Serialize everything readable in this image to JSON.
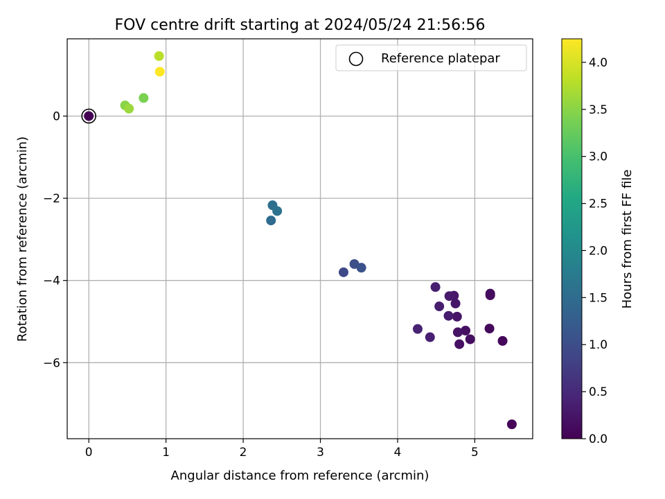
{
  "chart_data": {
    "type": "scatter",
    "title": "FOV centre drift starting at 2024/05/24 21:56:56",
    "xlabel": "Angular distance from reference (arcmin)",
    "ylabel": "Rotation from reference (arcmin)",
    "xlim": [
      -0.28,
      5.75
    ],
    "ylim": [
      -7.85,
      1.88
    ],
    "xticks": [
      0,
      1,
      2,
      3,
      4,
      5
    ],
    "yticks": [
      0,
      -2,
      -4,
      -6
    ],
    "xtick_labels": [
      "0",
      "1",
      "2",
      "3",
      "4",
      "5"
    ],
    "ytick_labels": [
      "0",
      "−2",
      "−4",
      "−6"
    ],
    "grid": true,
    "legend": {
      "position": "top-right",
      "entries": [
        "Reference platepar"
      ]
    },
    "colorbar": {
      "label": "Hours from first FF file",
      "colormap": "viridis",
      "range": [
        0.0,
        4.25
      ],
      "ticks": [
        0.0,
        0.5,
        1.0,
        1.5,
        2.0,
        2.5,
        3.0,
        3.5,
        4.0
      ],
      "tick_labels": [
        "0.0",
        "0.5",
        "1.0",
        "1.5",
        "2.0",
        "2.5",
        "3.0",
        "3.5",
        "4.0"
      ]
    },
    "reference_point": {
      "x": 0.0,
      "y": 0.0,
      "marker": "open-circle"
    },
    "points": [
      {
        "x": 0.0,
        "y": 0.0,
        "c": 0.0
      },
      {
        "x": 5.48,
        "y": -7.5,
        "c": 0.05
      },
      {
        "x": 5.36,
        "y": -5.47,
        "c": 0.08
      },
      {
        "x": 5.19,
        "y": -5.17,
        "c": 0.1
      },
      {
        "x": 5.2,
        "y": -4.32,
        "c": 0.12
      },
      {
        "x": 5.2,
        "y": -4.36,
        "c": 0.14
      },
      {
        "x": 4.94,
        "y": -5.43,
        "c": 0.16
      },
      {
        "x": 4.88,
        "y": -5.22,
        "c": 0.18
      },
      {
        "x": 4.8,
        "y": -5.55,
        "c": 0.2
      },
      {
        "x": 4.78,
        "y": -5.26,
        "c": 0.22
      },
      {
        "x": 4.77,
        "y": -4.88,
        "c": 0.24
      },
      {
        "x": 4.75,
        "y": -4.56,
        "c": 0.26
      },
      {
        "x": 4.73,
        "y": -4.37,
        "c": 0.28
      },
      {
        "x": 4.67,
        "y": -4.38,
        "c": 0.3
      },
      {
        "x": 4.66,
        "y": -4.86,
        "c": 0.32
      },
      {
        "x": 4.54,
        "y": -4.63,
        "c": 0.34
      },
      {
        "x": 4.49,
        "y": -4.16,
        "c": 0.36
      },
      {
        "x": 4.42,
        "y": -5.38,
        "c": 0.38
      },
      {
        "x": 4.26,
        "y": -5.18,
        "c": 0.4
      },
      {
        "x": 3.3,
        "y": -3.8,
        "c": 0.95
      },
      {
        "x": 3.44,
        "y": -3.6,
        "c": 1.0
      },
      {
        "x": 3.53,
        "y": -3.69,
        "c": 1.05
      },
      {
        "x": 2.36,
        "y": -2.54,
        "c": 1.5
      },
      {
        "x": 2.38,
        "y": -2.17,
        "c": 1.55
      },
      {
        "x": 2.44,
        "y": -2.31,
        "c": 1.6
      },
      {
        "x": 0.71,
        "y": 0.44,
        "c": 3.4
      },
      {
        "x": 0.47,
        "y": 0.26,
        "c": 3.5
      },
      {
        "x": 0.52,
        "y": 0.18,
        "c": 3.6
      },
      {
        "x": 0.91,
        "y": 1.46,
        "c": 3.8
      },
      {
        "x": 0.92,
        "y": 1.08,
        "c": 4.25
      }
    ]
  }
}
